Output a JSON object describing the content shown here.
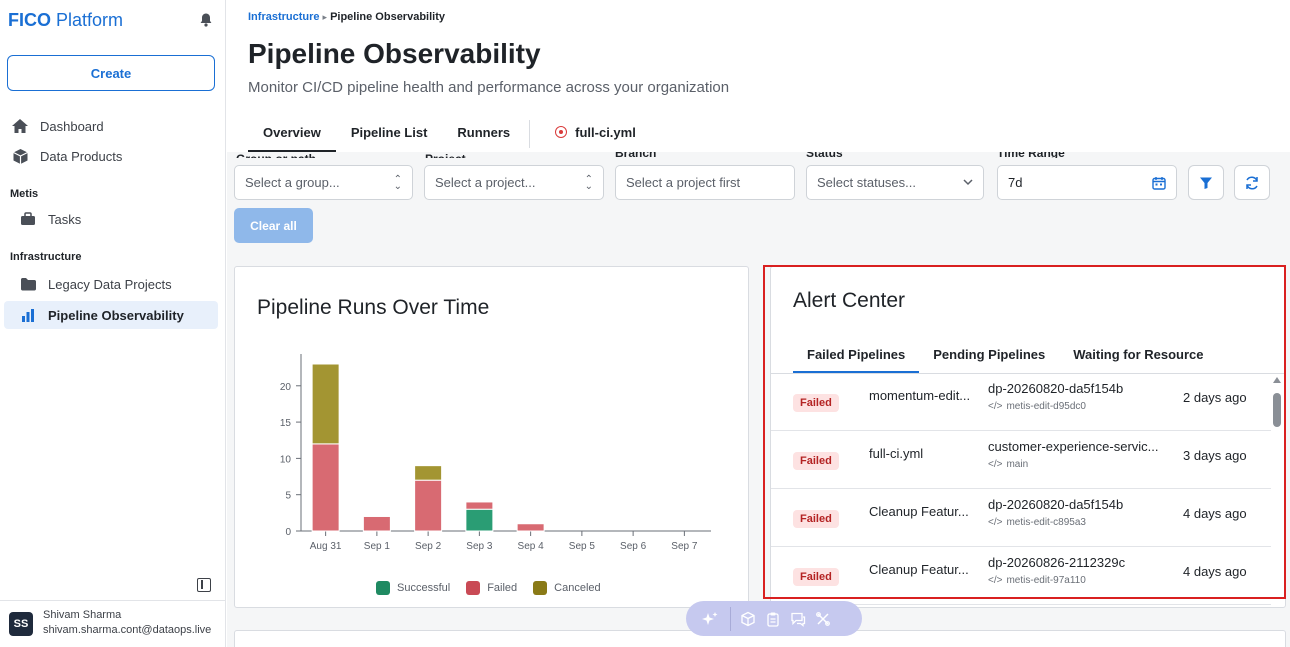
{
  "brand": {
    "strong": "FICO",
    "light": "Platform"
  },
  "sidebar": {
    "create_label": "Create",
    "items_top": [
      {
        "label": "Dashboard",
        "icon": "home-icon"
      },
      {
        "label": "Data Products",
        "icon": "cube-icon"
      }
    ],
    "section_metis": "Metis",
    "items_metis": [
      {
        "label": "Tasks",
        "icon": "briefcase-icon"
      }
    ],
    "section_infra": "Infrastructure",
    "items_infra": [
      {
        "label": "Legacy Data Projects",
        "icon": "folder-icon"
      },
      {
        "label": "Pipeline Observability",
        "icon": "bar-chart-icon",
        "active": true
      }
    ]
  },
  "user": {
    "initials": "SS",
    "name": "Shivam Sharma",
    "email": "shivam.sharma.cont@dataops.live"
  },
  "breadcrumb": {
    "parent": "Infrastructure",
    "current": "Pipeline Observability"
  },
  "page": {
    "title": "Pipeline Observability",
    "subtitle": "Monitor CI/CD pipeline health and performance across your organization"
  },
  "tabs": [
    "Overview",
    "Pipeline List",
    "Runners",
    "full-ci.yml"
  ],
  "filters": {
    "labels": [
      "Group or path",
      "Project",
      "Branch",
      "Status",
      "Time Range"
    ],
    "group_placeholder": "Select a group...",
    "project_placeholder": "Select a project...",
    "branch_placeholder": "Select a project first",
    "status_placeholder": "Select statuses...",
    "time_range_value": "7d",
    "clear_all": "Clear all"
  },
  "chart_data": {
    "type": "bar",
    "title": "Pipeline Runs Over Time",
    "categories": [
      "Aug 31",
      "Sep 1",
      "Sep 2",
      "Sep 3",
      "Sep 4",
      "Sep 5",
      "Sep 6",
      "Sep 7"
    ],
    "series": [
      {
        "name": "Successful",
        "color": "#2a9d74",
        "values": [
          0,
          0,
          0,
          3,
          0,
          0,
          0,
          0
        ]
      },
      {
        "name": "Failed",
        "color": "#d86a72",
        "values": [
          12,
          2,
          7,
          1,
          1,
          0,
          0,
          0
        ]
      },
      {
        "name": "Canceled",
        "color": "#a39532",
        "values": [
          11,
          0,
          2,
          0,
          0,
          0,
          0,
          0
        ]
      }
    ],
    "yticks": [
      "0",
      "5",
      "10",
      "15",
      "20"
    ],
    "ylim": [
      0,
      23
    ],
    "stacked": true,
    "legend": "bottom"
  },
  "alerts": {
    "title": "Alert Center",
    "tabs": [
      "Failed Pipelines",
      "Pending Pipelines",
      "Waiting for Resource"
    ],
    "rows": [
      {
        "status": "Failed",
        "pipeline": "momentum-edit...",
        "branch": "dp-20260820-da5f154b",
        "commit": "metis-edit-d95dc0",
        "when": "2 days ago"
      },
      {
        "status": "Failed",
        "pipeline": "full-ci.yml",
        "branch": "customer-experience-servic...",
        "commit": "main",
        "when": "3 days ago"
      },
      {
        "status": "Failed",
        "pipeline": "Cleanup Featur...",
        "branch": "dp-20260820-da5f154b",
        "commit": "metis-edit-c895a3",
        "when": "4 days ago"
      },
      {
        "status": "Failed",
        "pipeline": "Cleanup Featur...",
        "branch": "dp-20260826-2112329c",
        "commit": "metis-edit-97a110",
        "when": "4 days ago"
      }
    ]
  }
}
